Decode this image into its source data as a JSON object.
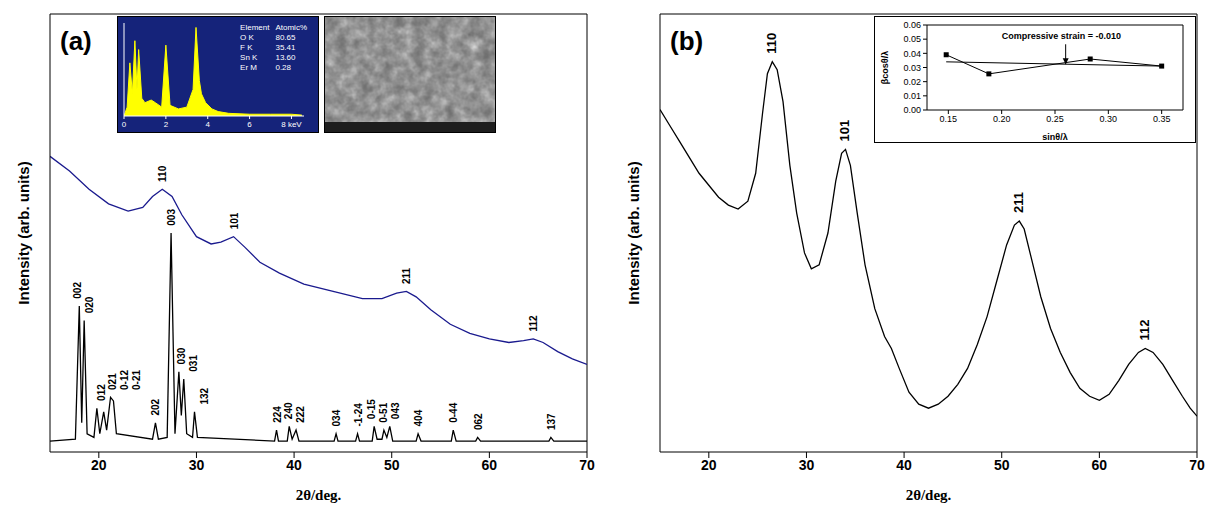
{
  "chart_data": [
    {
      "type": "line",
      "title": "(a)",
      "x_label": "2θ/deg.",
      "y_label": "Intensity (arb. units)",
      "xlim": [
        15,
        70
      ],
      "xticks": [
        20,
        30,
        40,
        50,
        60,
        70
      ],
      "ylim": [
        0,
        120
      ],
      "tick_labels": "x",
      "series": [
        {
          "color": "#1a1a8e",
          "x": [
            15,
            17,
            19,
            21,
            23,
            24.5,
            25.5,
            26.5,
            27.5,
            28.5,
            30,
            31.5,
            32.5,
            33.8,
            35,
            36.5,
            38.5,
            41,
            44,
            47,
            49,
            50.5,
            51.5,
            52.5,
            54,
            56,
            58,
            60,
            62,
            63.5,
            64.5,
            65.5,
            67,
            68.5,
            70
          ],
          "values": [
            81,
            77,
            72,
            68,
            66,
            67,
            70,
            72,
            70,
            65,
            59,
            57,
            57.5,
            59,
            56,
            52,
            49,
            46,
            44,
            42,
            42,
            43.5,
            44,
            42.5,
            39,
            35,
            32.5,
            31,
            30,
            30.5,
            31,
            30,
            27.5,
            25.5,
            24
          ]
        },
        {
          "color": "#000000",
          "x": [
            15,
            17.6,
            18.0,
            18.25,
            18.5,
            18.8,
            19.5,
            19.8,
            20.1,
            20.5,
            20.8,
            21.2,
            21.5,
            21.8,
            25.5,
            25.8,
            26.1,
            27.0,
            27.4,
            27.8,
            28.2,
            28.45,
            28.7,
            29.0,
            29.6,
            29.8,
            30.1,
            38.0,
            38.2,
            38.4,
            39.3,
            39.5,
            39.8,
            40.2,
            40.5,
            44.1,
            44.3,
            44.5,
            46.3,
            46.5,
            46.7,
            48.0,
            48.2,
            48.5,
            49.0,
            49.2,
            49.5,
            49.8,
            50.1,
            52.5,
            52.7,
            53.0,
            56.1,
            56.3,
            56.6,
            58.6,
            58.8,
            59.1,
            66.1,
            66.3,
            66.6,
            70
          ],
          "values": [
            3,
            3.5,
            40,
            8,
            36,
            5,
            4,
            12,
            5,
            11,
            6,
            15,
            14,
            5,
            3.5,
            8,
            3.5,
            4,
            60,
            5,
            22,
            10,
            20,
            5,
            4,
            11,
            4,
            3,
            6,
            3,
            3,
            7,
            3.5,
            6,
            3,
            3,
            5,
            3,
            3,
            5,
            3,
            3,
            7,
            3.5,
            3.5,
            6,
            4,
            7,
            3,
            3,
            5,
            3,
            3,
            6,
            3,
            3,
            4,
            3,
            3,
            4,
            3,
            3
          ]
        }
      ],
      "annotations": [
        {
          "text": "110",
          "x": 26.5,
          "y": 74
        },
        {
          "text": "101",
          "x": 33.8,
          "y": 61
        },
        {
          "text": "211",
          "x": 51.5,
          "y": 46
        },
        {
          "text": "112",
          "x": 64.5,
          "y": 33
        },
        {
          "text": "002",
          "x": 17.8,
          "y": 42
        },
        {
          "text": "020",
          "x": 19.0,
          "y": 38
        },
        {
          "text": "012",
          "x": 20.2,
          "y": 14
        },
        {
          "text": "021",
          "x": 21.4,
          "y": 17
        },
        {
          "text": "0-12",
          "x": 22.6,
          "y": 17
        },
        {
          "text": "0-21",
          "x": 23.8,
          "y": 17
        },
        {
          "text": "202",
          "x": 25.8,
          "y": 10
        },
        {
          "text": "003",
          "x": 27.4,
          "y": 62
        },
        {
          "text": "030",
          "x": 28.4,
          "y": 24
        },
        {
          "text": "031",
          "x": 29.6,
          "y": 22
        },
        {
          "text": "132",
          "x": 30.8,
          "y": 13
        },
        {
          "text": "224",
          "x": 38.2,
          "y": 8
        },
        {
          "text": "240",
          "x": 39.4,
          "y": 9
        },
        {
          "text": "222",
          "x": 40.6,
          "y": 8
        },
        {
          "text": "034",
          "x": 44.3,
          "y": 7
        },
        {
          "text": "-1-24",
          "x": 46.5,
          "y": 7
        },
        {
          "text": "0-15",
          "x": 47.9,
          "y": 9
        },
        {
          "text": "0-51",
          "x": 49.1,
          "y": 8
        },
        {
          "text": "043",
          "x": 50.3,
          "y": 9
        },
        {
          "text": "404",
          "x": 52.7,
          "y": 7
        },
        {
          "text": "0-44",
          "x": 56.3,
          "y": 8
        },
        {
          "text": "062",
          "x": 58.8,
          "y": 6
        },
        {
          "text": "137",
          "x": 66.3,
          "y": 6
        }
      ]
    },
    {
      "type": "area",
      "color": "#ffff00",
      "xlim": [
        0,
        8.6
      ],
      "xticks": [
        0,
        2,
        4,
        6,
        {
          "value": 8,
          "label": "8 keV"
        }
      ],
      "ylim": [
        0,
        105
      ],
      "tick_labels": "x",
      "x": [
        0,
        0.15,
        0.28,
        0.4,
        0.52,
        0.62,
        0.7,
        0.85,
        1.0,
        1.3,
        1.5,
        1.8,
        2.0,
        2.2,
        2.6,
        3.0,
        3.3,
        3.44,
        3.6,
        3.7,
        3.9,
        4.2,
        4.5,
        5,
        6,
        7,
        8,
        8.5
      ],
      "values": [
        0,
        10,
        60,
        25,
        85,
        30,
        75,
        20,
        15,
        18,
        15,
        10,
        80,
        12,
        8,
        10,
        30,
        100,
        40,
        25,
        15,
        8,
        5,
        3,
        2,
        2,
        2,
        1
      ],
      "table": {
        "header": [
          "Element",
          "Atomic%"
        ],
        "rows": [
          [
            "O K",
            "80.65"
          ],
          [
            "F K",
            "35.41"
          ],
          [
            "Sn K",
            "13.60"
          ],
          [
            "Er M",
            "0.28"
          ]
        ]
      }
    },
    {
      "type": "line",
      "title": "(b)",
      "x_label": "2θ/deg.",
      "y_label": "Intensity (arb. units)",
      "xlim": [
        15,
        70
      ],
      "xticks": [
        20,
        30,
        40,
        50,
        60,
        70
      ],
      "ylim": [
        0,
        110
      ],
      "tick_labels": "x",
      "series": [
        {
          "color": "#000000",
          "x": [
            15,
            16,
            17,
            18,
            19,
            20,
            21,
            22,
            23,
            24,
            24.8,
            25.5,
            26,
            26.5,
            27,
            27.6,
            28.3,
            29,
            29.8,
            30.5,
            31.3,
            32.2,
            33,
            33.6,
            34,
            34.5,
            35.2,
            36,
            37,
            38,
            38.7,
            39.5,
            40.5,
            41.5,
            42.5,
            43.5,
            44.5,
            45.5,
            46.5,
            47.5,
            48.5,
            49.5,
            50.5,
            51.3,
            51.8,
            52.3,
            53,
            54,
            55,
            56,
            57,
            58,
            59,
            60,
            61,
            62,
            63,
            64,
            64.7,
            65.5,
            66.5,
            67.5,
            68.5,
            69.3,
            70
          ],
          "values": [
            86,
            82,
            78,
            74,
            70,
            67,
            64,
            62,
            61,
            63,
            70,
            85,
            95,
            98,
            96,
            88,
            72,
            60,
            50,
            46,
            47,
            55,
            68,
            75,
            76,
            72,
            60,
            47,
            36,
            29,
            26,
            21,
            15,
            12,
            11,
            12,
            14,
            17,
            21,
            27,
            34,
            43,
            52,
            57,
            58,
            56,
            49,
            39,
            31,
            25,
            20,
            16,
            14,
            13,
            14.5,
            18,
            22,
            25,
            26,
            25,
            22,
            18,
            14,
            11,
            9
          ]
        }
      ],
      "annotations": [
        {
          "text": "110",
          "x": 26.5,
          "y": 100
        },
        {
          "text": "101",
          "x": 34,
          "y": 78
        },
        {
          "text": "211",
          "x": 51.8,
          "y": 60
        },
        {
          "text": "112",
          "x": 64.7,
          "y": 28
        }
      ]
    },
    {
      "type": "line",
      "x_label": "sinθ/λ",
      "y_label": "βcosθ/λ",
      "xlim": [
        0.13,
        0.37
      ],
      "xticks": [
        0.15,
        {
          "value": 0.2,
          "label": "0.20"
        },
        0.25,
        {
          "value": 0.3,
          "label": "0.30"
        },
        0.35
      ],
      "ylim": [
        0,
        0.06
      ],
      "yticks": [
        {
          "value": 0,
          "label": "0.00"
        },
        0.01,
        0.02,
        0.03,
        0.04,
        0.05,
        0.06
      ],
      "series": [
        {
          "color": "#000000",
          "marker": "square",
          "line_style": "solid",
          "x": [
            0.148,
            0.188,
            0.283,
            0.35
          ],
          "values": [
            0.039,
            0.0255,
            0.036,
            0.031
          ]
        },
        {
          "color": "#000000",
          "line_style": "solid",
          "x": [
            0.148,
            0.35
          ],
          "values": [
            0.034,
            0.031
          ]
        }
      ],
      "annotations": [
        {
          "text": "Compressive strain = -0.010",
          "x": 0.2,
          "y": 0.05
        }
      ]
    }
  ]
}
